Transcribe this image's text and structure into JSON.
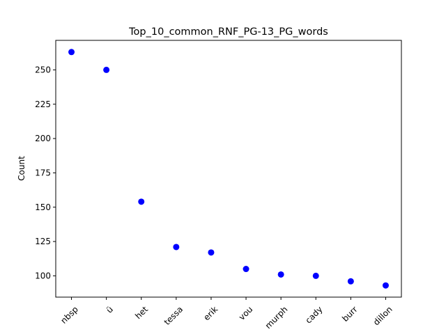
{
  "chart_data": {
    "type": "scatter",
    "title": "Top_10_common_RNF_PG-13_PG_words",
    "xlabel": "",
    "ylabel": "Count",
    "categories": [
      "nbsp",
      "ü",
      "het",
      "tessa",
      "erik",
      "vou",
      "murph",
      "cady",
      "burr",
      "dillon"
    ],
    "values": [
      263,
      250,
      154,
      121,
      117,
      105,
      101,
      100,
      96,
      93
    ],
    "ylim": [
      84.5,
      271.5
    ],
    "yticks": [
      100,
      125,
      150,
      175,
      200,
      225,
      250
    ],
    "marker_color": "#0000ff",
    "grid": false,
    "legend": "none"
  }
}
